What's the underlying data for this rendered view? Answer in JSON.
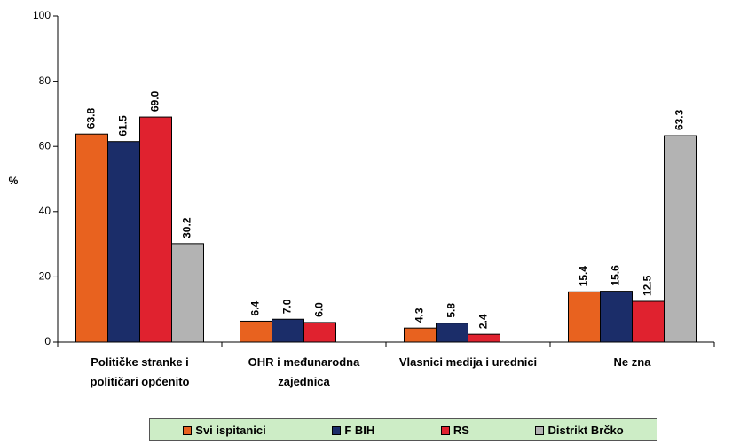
{
  "chart_data": {
    "type": "bar",
    "ylabel": "%",
    "categories": [
      "Političke stranke i političari općenito",
      "OHR i međunarodna zajednica",
      "Vlasnici medija i urednici",
      "Ne zna"
    ],
    "series": [
      {
        "name": "Svi ispitanici",
        "color": "#e8621f",
        "values": [
          63.8,
          6.4,
          4.3,
          15.4
        ],
        "value_labels": [
          "63.8",
          "6.4",
          "4.3",
          "15.4"
        ]
      },
      {
        "name": "F BIH",
        "color": "#1b2d69",
        "values": [
          61.5,
          7.0,
          5.8,
          15.6
        ],
        "value_labels": [
          "61.5",
          "7.0",
          "5.8",
          "15.6"
        ]
      },
      {
        "name": "RS",
        "color": "#e0222f",
        "values": [
          69.0,
          6.0,
          2.4,
          12.5
        ],
        "value_labels": [
          "69.0",
          "6.0",
          "2.4",
          "12.5"
        ]
      },
      {
        "name": "Distrikt Brčko",
        "color": "#b3b3b3",
        "values": [
          30.2,
          null,
          null,
          63.3
        ],
        "value_labels": [
          "30.2",
          null,
          null,
          "63.3"
        ]
      }
    ],
    "ylim": [
      0,
      100
    ],
    "yticks": [
      0,
      20,
      40,
      60,
      80,
      100
    ],
    "grid": false,
    "legend": "bottom"
  }
}
